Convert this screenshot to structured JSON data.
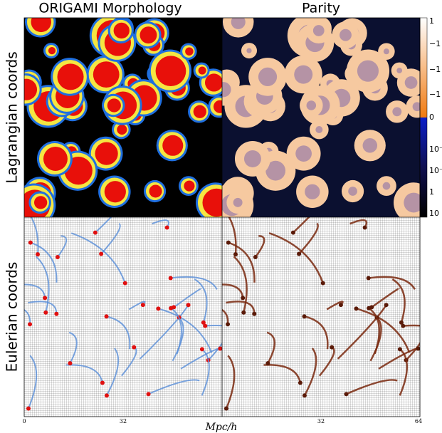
{
  "titles": [
    "ORIGAMI Morphology",
    "Parity"
  ],
  "row_labels": [
    "Lagrangian coords",
    "Eulerian coords"
  ],
  "colorbar_labels": [
    "1",
    "−1",
    "−1",
    "−1",
    "0",
    "10⁻",
    "10⁻",
    "1",
    "10"
  ],
  "x_ticks_left": [
    "0",
    "32"
  ],
  "x_ticks_right": [
    "32",
    "64"
  ],
  "xlabel": "Mpc/h"
}
